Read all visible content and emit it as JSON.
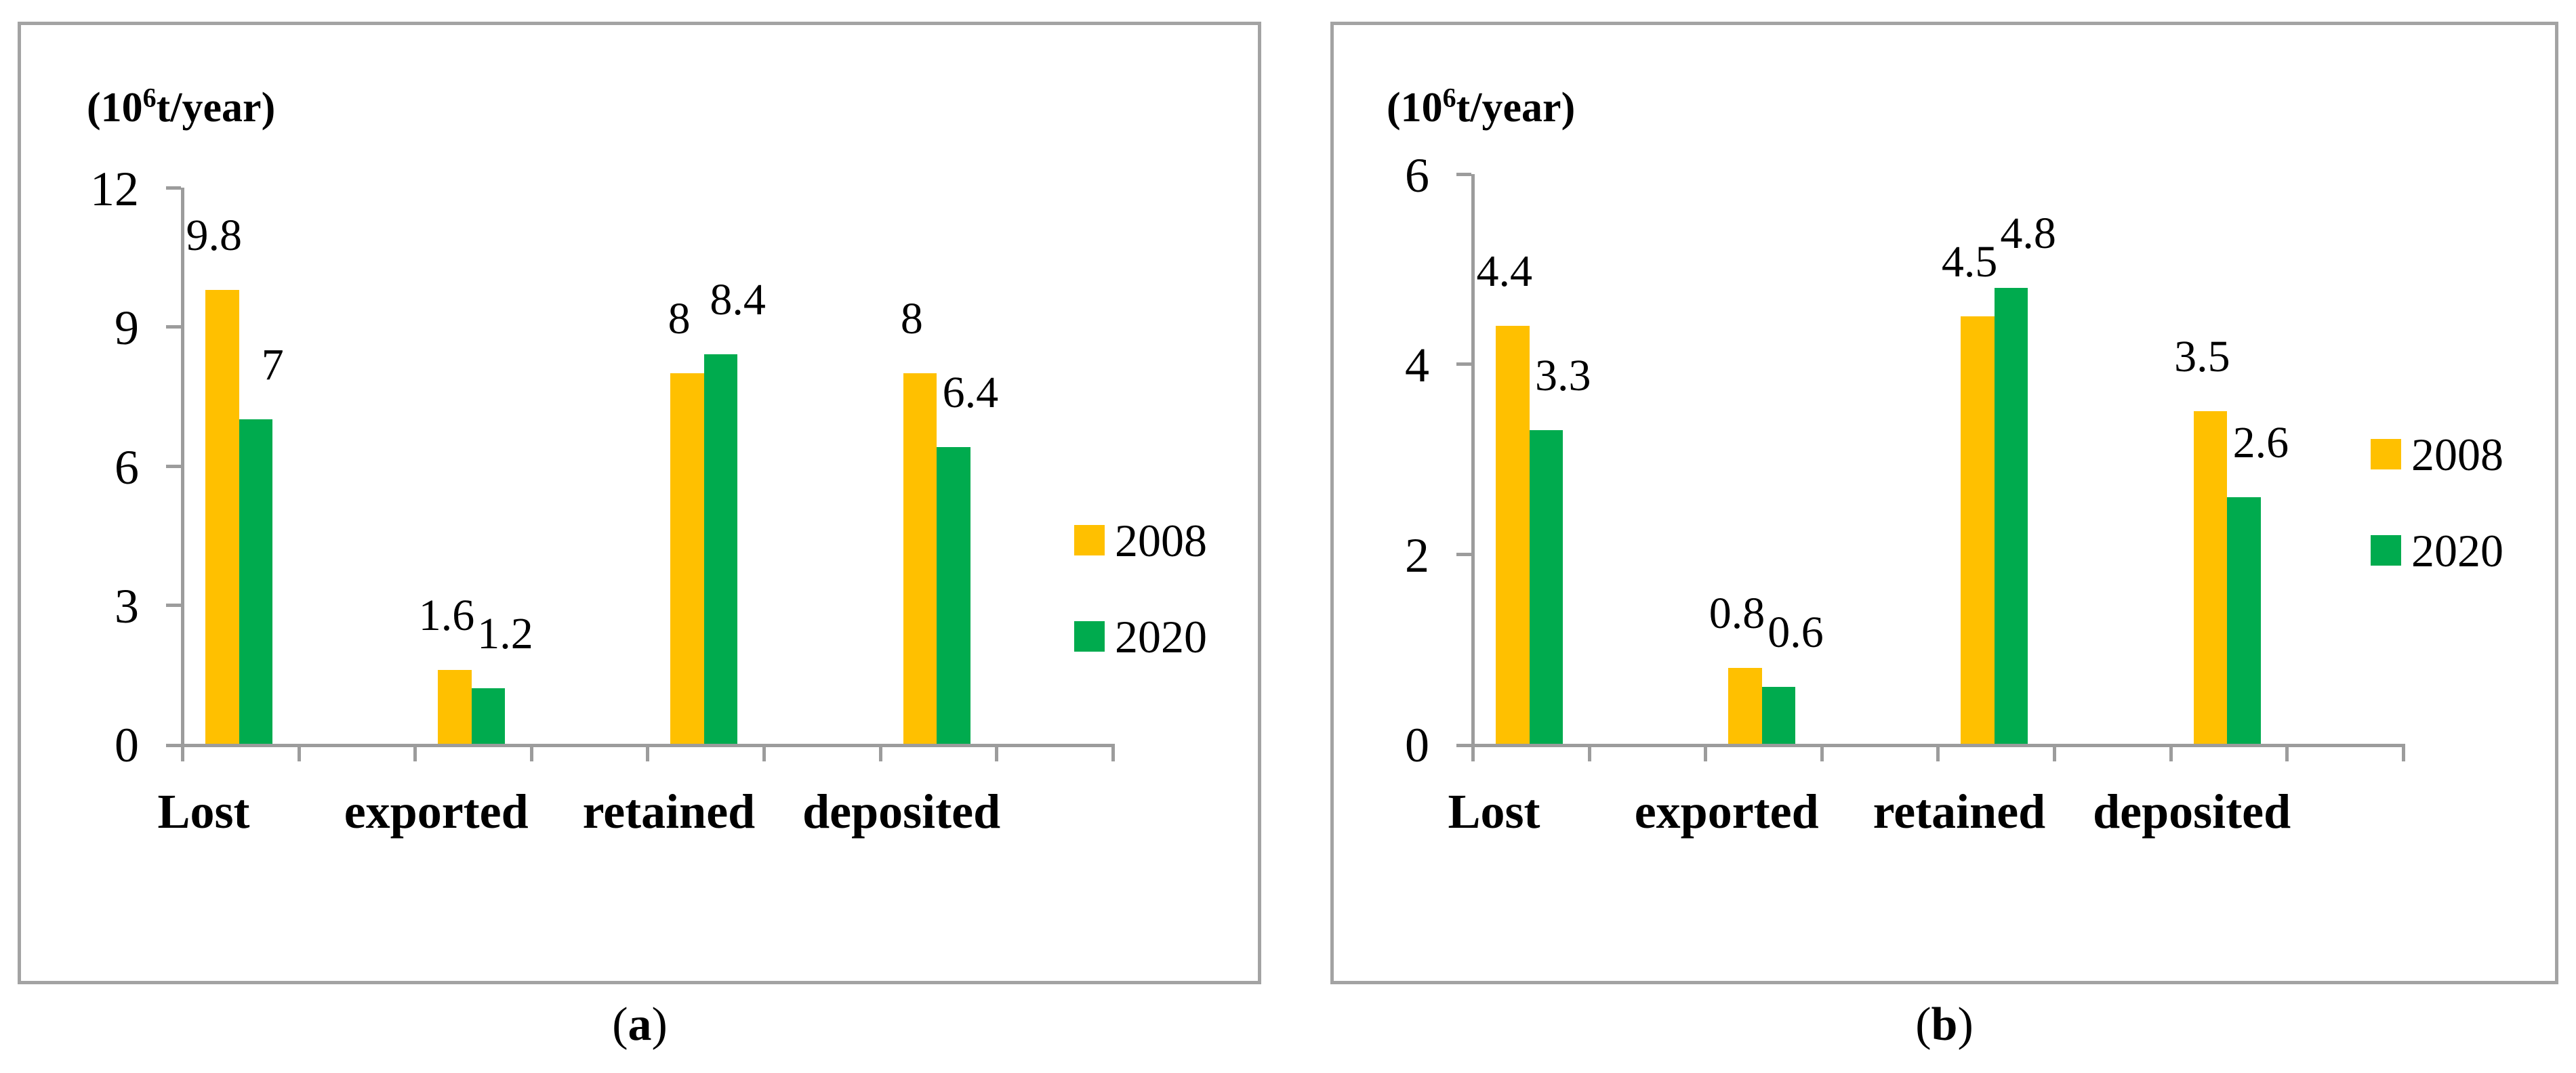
{
  "page": {
    "captions": [
      {
        "prefix": "(",
        "letter": "a",
        "suffix": ")"
      },
      {
        "prefix": "(",
        "letter": "b",
        "suffix": ")"
      }
    ]
  },
  "colors": {
    "series_2008": "#FFC000",
    "series_2020": "#00AB4E",
    "axis_gray": "#9c9c9c",
    "panel_border_gray": "#a3a3a3"
  },
  "chart_data": [
    {
      "type": "bar",
      "panel": "a",
      "unit_label": {
        "prefix": "(10",
        "sup": "6",
        "suffix": "t/year)"
      },
      "categories": [
        "Lost",
        "exported",
        "retained",
        "deposited"
      ],
      "series": [
        {
          "name": "2008",
          "color": "#FFC000",
          "values": [
            9.8,
            1.6,
            8,
            8
          ]
        },
        {
          "name": "2020",
          "color": "#00AB4E",
          "values": [
            7,
            1.2,
            8.4,
            6.4
          ]
        }
      ],
      "y_ticks": [
        0,
        3,
        6,
        9,
        12
      ],
      "ylim": [
        0,
        12
      ],
      "grid": false,
      "legend_position": "right",
      "data_labels": true
    },
    {
      "type": "bar",
      "panel": "b",
      "unit_label": {
        "prefix": "(10",
        "sup": "6",
        "suffix": "t/year)"
      },
      "categories": [
        "Lost",
        "exported",
        "retained",
        "deposited"
      ],
      "series": [
        {
          "name": "2008",
          "color": "#FFC000",
          "values": [
            4.4,
            0.8,
            4.5,
            3.5
          ]
        },
        {
          "name": "2020",
          "color": "#00AB4E",
          "values": [
            3.3,
            0.6,
            4.8,
            2.6
          ]
        }
      ],
      "y_ticks": [
        0,
        2,
        4,
        6
      ],
      "ylim": [
        0,
        6
      ],
      "grid": false,
      "legend_position": "right",
      "data_labels": true
    }
  ]
}
